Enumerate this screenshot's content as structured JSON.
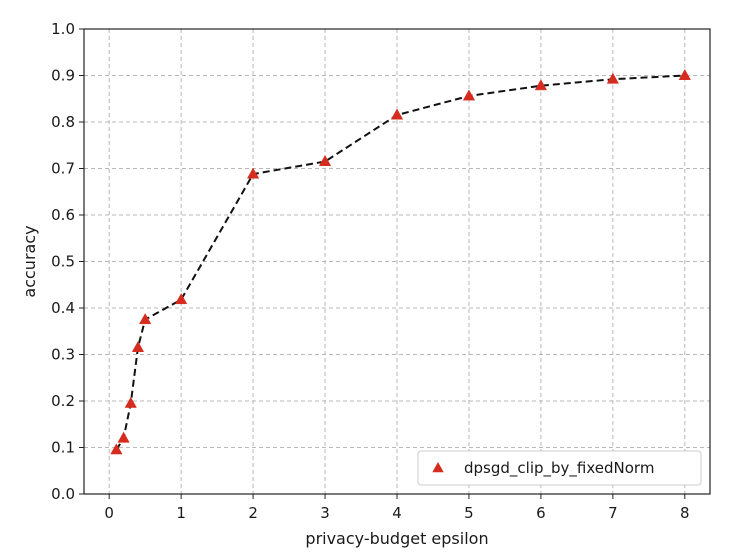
{
  "chart_data": {
    "type": "line",
    "title": "",
    "xlabel": "privacy-budget epsilon",
    "ylabel": "accuracy",
    "xlim": [
      -0.35,
      8.35
    ],
    "ylim": [
      0.0,
      1.0
    ],
    "x_ticks": [
      0,
      1,
      2,
      3,
      4,
      5,
      6,
      7,
      8
    ],
    "x_tick_labels": [
      "0",
      "1",
      "2",
      "3",
      "4",
      "5",
      "6",
      "7",
      "8"
    ],
    "y_ticks": [
      0.0,
      0.1,
      0.2,
      0.3,
      0.4,
      0.5,
      0.6,
      0.7,
      0.8,
      0.9,
      1.0
    ],
    "y_tick_labels": [
      "0.0",
      "0.1",
      "0.2",
      "0.3",
      "0.4",
      "0.5",
      "0.6",
      "0.7",
      "0.8",
      "0.9",
      "1.0"
    ],
    "grid": true,
    "legend_position": "bottom-right",
    "series": [
      {
        "name": "dpsgd_clip_by_fixedNorm",
        "x": [
          0.1,
          0.2,
          0.3,
          0.4,
          0.5,
          1,
          2,
          3,
          4,
          5,
          6,
          7,
          8
        ],
        "y": [
          0.095,
          0.12,
          0.195,
          0.315,
          0.375,
          0.418,
          0.688,
          0.715,
          0.815,
          0.856,
          0.878,
          0.892,
          0.9
        ],
        "line_color": "#111111",
        "line_style": "dashed",
        "marker": "triangle",
        "marker_color": "#d62c1f"
      }
    ]
  }
}
